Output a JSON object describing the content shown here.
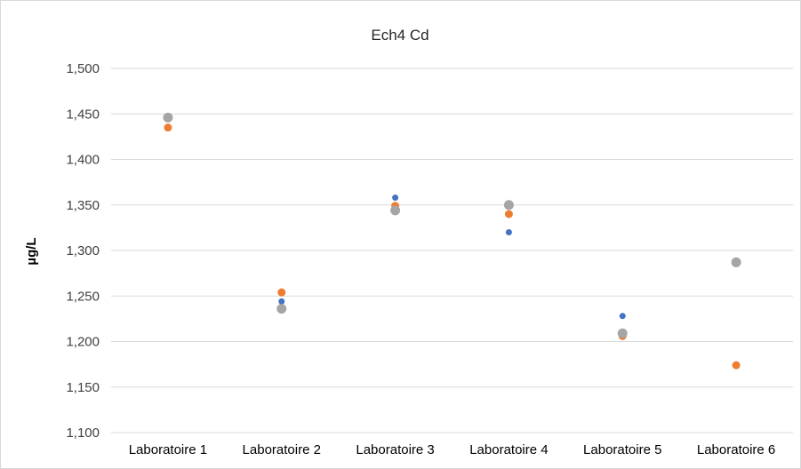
{
  "chart_data": {
    "type": "scatter",
    "title": "Ech4 Cd",
    "ylabel": "µg/L",
    "xlabel": "",
    "categories": [
      "Laboratoire 1",
      "Laboratoire 2",
      "Laboratoire 3",
      "Laboratoire 4",
      "Laboratoire 5",
      "Laboratoire 6"
    ],
    "ylim": [
      1.1,
      1.5
    ],
    "yticks": [
      1.1,
      1.15,
      1.2,
      1.25,
      1.3,
      1.35,
      1.4,
      1.45,
      1.5
    ],
    "ytick_labels": [
      "1,100",
      "1,150",
      "1,200",
      "1,250",
      "1,300",
      "1,350",
      "1,400",
      "1,450",
      "1,500"
    ],
    "grid": true,
    "legend": "none",
    "series": [
      {
        "color": "#4472c4",
        "values": [
          1.447,
          1.244,
          1.358,
          1.32,
          1.228,
          1.289
        ]
      },
      {
        "color": "#ed7d31",
        "values": [
          1.435,
          1.254,
          1.349,
          1.34,
          1.206,
          1.174
        ]
      },
      {
        "color": "#a5a5a5",
        "values": [
          1.446,
          1.236,
          1.344,
          1.35,
          1.209,
          1.287
        ]
      }
    ]
  }
}
